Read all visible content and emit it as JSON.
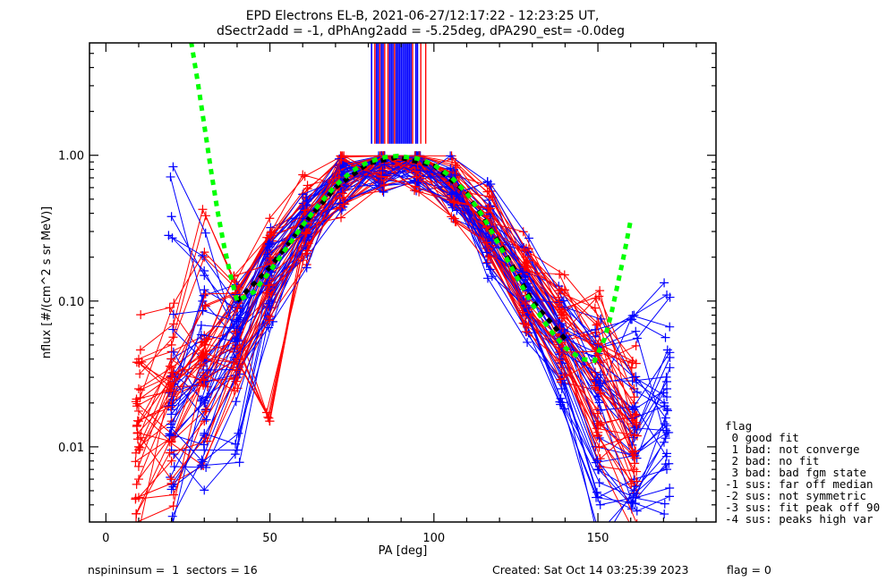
{
  "chart_data": {
    "type": "line",
    "title": "EPD Electrons EL-B, 2021-06-27/12:17:22 - 12:23:25 UT,",
    "subtitle": "dSectr2add = -1, dPhAng2add = -5.25deg, dPA290_est=  -0.0deg",
    "xlabel": "PA [deg]",
    "ylabel": "nflux [#/(cm^2 s sr MeV)]",
    "xlim": [
      -5,
      186
    ],
    "ylim": [
      0.00305,
      5.9
    ],
    "yscale": "log",
    "xticks": [
      0,
      50,
      100,
      150
    ],
    "xtick_labels": [
      "0",
      "50",
      "100",
      "150"
    ],
    "yticks": [
      0.01,
      0.1,
      1.0
    ],
    "ytick_labels": [
      "0.01",
      "0.10",
      "1.00"
    ],
    "grid": false,
    "series_colors": {
      "red": "#ff0000",
      "blue": "#0000ff",
      "fit": "#00ff00",
      "median": "#000000"
    },
    "fit_curve": {
      "name": "fit",
      "style": "dashed",
      "x": [
        26,
        28,
        30,
        32,
        34,
        36,
        38,
        40,
        45,
        50,
        55,
        60,
        65,
        70,
        75,
        80,
        85,
        89,
        95,
        100,
        105,
        110,
        115,
        120,
        125,
        130,
        135,
        140,
        145,
        149,
        152,
        154,
        156,
        158,
        160
      ],
      "y": [
        6.0,
        3.2,
        1.6,
        0.8,
        0.42,
        0.24,
        0.15,
        0.1,
        0.115,
        0.16,
        0.23,
        0.33,
        0.46,
        0.62,
        0.78,
        0.9,
        0.97,
        0.99,
        0.95,
        0.86,
        0.72,
        0.55,
        0.38,
        0.24,
        0.15,
        0.095,
        0.065,
        0.048,
        0.04,
        0.039,
        0.055,
        0.08,
        0.13,
        0.21,
        0.36
      ]
    },
    "median_curve": {
      "name": "median",
      "x": [
        40,
        50,
        60,
        70,
        80,
        89,
        100,
        110,
        120,
        130,
        140
      ],
      "y": [
        0.1,
        0.17,
        0.33,
        0.6,
        0.88,
        0.97,
        0.85,
        0.55,
        0.25,
        0.1,
        0.055
      ]
    },
    "peak_lines": {
      "ymin": 1.2,
      "red_x": [
        82,
        83.5,
        85,
        86,
        88,
        93.5,
        96,
        97.5
      ],
      "blue_x": [
        81,
        82.5,
        83,
        84,
        84.5,
        86.5,
        87,
        87.5,
        88.5,
        89,
        89.5,
        90,
        90.5,
        91,
        91.5,
        92,
        92.5,
        93,
        94.5,
        95
      ]
    },
    "sample_x": [
      10,
      20,
      30,
      40,
      50,
      61,
      72,
      84,
      95,
      106,
      117,
      128,
      139,
      150,
      161,
      171
    ],
    "series": [
      {
        "name": "red-1",
        "color": "red",
        "values": [
          0.038,
          0.045,
          0.058,
          0.09,
          0.2,
          0.4,
          0.75,
          0.95,
          0.9,
          0.7,
          0.35,
          0.16,
          0.08,
          0.05,
          0.025,
          null
        ]
      },
      {
        "name": "red-2",
        "color": "red",
        "values": [
          0.015,
          0.02,
          0.03,
          0.06,
          0.15,
          0.33,
          0.65,
          0.88,
          0.85,
          0.6,
          0.3,
          0.12,
          0.06,
          0.03,
          0.012,
          null
        ]
      },
      {
        "name": "red-3",
        "color": "red",
        "values": [
          0.006,
          0.012,
          0.02,
          0.04,
          0.11,
          0.28,
          0.6,
          0.85,
          0.8,
          0.5,
          0.22,
          0.08,
          0.035,
          0.018,
          0.007,
          null
        ]
      },
      {
        "name": "red-4",
        "color": "red",
        "values": [
          0.025,
          0.035,
          0.05,
          0.1,
          0.22,
          0.45,
          0.8,
          0.97,
          0.92,
          0.72,
          0.4,
          0.2,
          0.09,
          0.045,
          0.02,
          null
        ]
      },
      {
        "name": "red-5",
        "color": "red",
        "values": [
          0.0045,
          0.008,
          0.015,
          0.035,
          0.09,
          0.25,
          0.55,
          0.82,
          0.78,
          0.52,
          0.25,
          0.1,
          0.04,
          0.012,
          0.0048,
          null
        ]
      },
      {
        "name": "red-6",
        "color": "red",
        "values": [
          0.04,
          0.05,
          0.2,
          0.12,
          0.25,
          0.5,
          0.85,
          0.98,
          0.95,
          0.75,
          0.45,
          0.22,
          0.12,
          0.07,
          0.03,
          null
        ]
      },
      {
        "name": "red-7",
        "color": "red",
        "values": [
          0.01,
          0.015,
          0.028,
          0.05,
          0.015,
          0.3,
          0.62,
          0.9,
          0.86,
          0.62,
          0.3,
          0.14,
          0.06,
          0.025,
          0.009,
          null
        ]
      },
      {
        "name": "blue-1",
        "color": "blue",
        "values": [
          null,
          0.018,
          0.03,
          0.06,
          0.16,
          0.36,
          0.7,
          0.9,
          0.88,
          0.62,
          0.3,
          0.12,
          0.05,
          0.022,
          0.012,
          0.028
        ]
      },
      {
        "name": "blue-2",
        "color": "blue",
        "values": [
          null,
          0.0055,
          0.012,
          0.03,
          0.09,
          0.24,
          0.55,
          0.82,
          0.8,
          0.5,
          0.2,
          0.07,
          0.025,
          0.007,
          0.005,
          0.009
        ]
      },
      {
        "name": "blue-3",
        "color": "blue",
        "values": [
          null,
          0.04,
          0.055,
          0.1,
          0.22,
          0.46,
          0.8,
          0.95,
          0.93,
          0.78,
          0.45,
          0.22,
          0.1,
          0.05,
          0.03,
          0.022
        ]
      },
      {
        "name": "blue-4",
        "color": "blue",
        "values": [
          null,
          0.38,
          0.15,
          0.08,
          0.19,
          0.4,
          0.72,
          0.9,
          0.88,
          0.65,
          0.34,
          0.15,
          0.07,
          0.05,
          0.08,
          0.11
        ]
      },
      {
        "name": "blue-5",
        "color": "blue",
        "values": [
          null,
          0.012,
          0.02,
          0.045,
          0.12,
          0.3,
          0.6,
          0.86,
          0.84,
          0.56,
          0.26,
          0.1,
          0.04,
          0.015,
          0.009,
          0.014
        ]
      },
      {
        "name": "blue-6",
        "color": "blue",
        "values": [
          null,
          0.025,
          0.04,
          0.075,
          0.18,
          0.38,
          0.74,
          0.92,
          0.9,
          0.68,
          0.36,
          0.16,
          0.07,
          0.03,
          0.018,
          0.025
        ]
      },
      {
        "name": "blue-7",
        "color": "blue",
        "values": [
          null,
          0.0095,
          0.0095,
          0.0095,
          0.1,
          0.26,
          0.58,
          0.84,
          0.82,
          0.55,
          0.24,
          0.09,
          0.03,
          0.0045,
          0.006,
          0.007
        ]
      }
    ]
  },
  "legend": {
    "title": "flag",
    "items": [
      " 0 good fit",
      " 1 bad: not converge",
      " 2 bad: no fit",
      " 3 bad: bad fgm state",
      "-1 sus: far off median",
      "-2 sus: not symmetric",
      "-3 sus: fit peak off 90",
      "-4 sus: peaks high var"
    ]
  },
  "footer": {
    "left": "nspininsum =  1  sectors = 16",
    "created": "Created: Sat Oct 14 03:25:39 2023",
    "flag": "flag = 0"
  }
}
